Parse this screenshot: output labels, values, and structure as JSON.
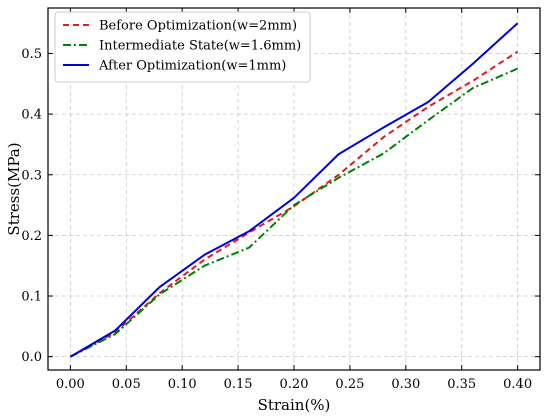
{
  "chart_data": {
    "type": "line",
    "xlabel": "Strain(%)",
    "ylabel": "Stress(MPa)",
    "xlim": [
      -0.02,
      0.42
    ],
    "ylim": [
      -0.022,
      0.575
    ],
    "xticks": [
      0.0,
      0.05,
      0.1,
      0.15,
      0.2,
      0.25,
      0.3,
      0.35,
      0.4
    ],
    "xtick_labels": [
      "0.00",
      "0.05",
      "0.10",
      "0.15",
      "0.20",
      "0.25",
      "0.30",
      "0.35",
      "0.40"
    ],
    "yticks": [
      0.0,
      0.1,
      0.2,
      0.3,
      0.4,
      0.5
    ],
    "ytick_labels": [
      "0.0",
      "0.1",
      "0.2",
      "0.3",
      "0.4",
      "0.5"
    ],
    "grid": true,
    "legend_position": "top-left",
    "series": [
      {
        "name": "Before Optimization(w=2mm)",
        "color": "#e41a1c",
        "style": "dashed",
        "points": [
          [
            0.0,
            0.0
          ],
          [
            0.04,
            0.04
          ],
          [
            0.08,
            0.105
          ],
          [
            0.12,
            0.16
          ],
          [
            0.16,
            0.205
          ],
          [
            0.2,
            0.248
          ],
          [
            0.24,
            0.3
          ],
          [
            0.28,
            0.362
          ],
          [
            0.32,
            0.412
          ],
          [
            0.36,
            0.455
          ],
          [
            0.4,
            0.503
          ]
        ]
      },
      {
        "name": "Intermediate State(w=1.6mm)",
        "color": "#008000",
        "style": "dashdot",
        "points": [
          [
            0.0,
            0.0
          ],
          [
            0.04,
            0.037
          ],
          [
            0.08,
            0.103
          ],
          [
            0.12,
            0.15
          ],
          [
            0.16,
            0.18
          ],
          [
            0.2,
            0.25
          ],
          [
            0.24,
            0.295
          ],
          [
            0.28,
            0.335
          ],
          [
            0.32,
            0.39
          ],
          [
            0.36,
            0.443
          ],
          [
            0.4,
            0.475
          ]
        ]
      },
      {
        "name": "After Optimization(w=1mm)",
        "color": "#0000dd",
        "style": "solid",
        "points": [
          [
            0.0,
            0.0
          ],
          [
            0.04,
            0.043
          ],
          [
            0.08,
            0.115
          ],
          [
            0.12,
            0.168
          ],
          [
            0.16,
            0.207
          ],
          [
            0.2,
            0.262
          ],
          [
            0.24,
            0.334
          ],
          [
            0.28,
            0.378
          ],
          [
            0.32,
            0.42
          ],
          [
            0.36,
            0.483
          ],
          [
            0.4,
            0.55
          ]
        ]
      }
    ]
  }
}
